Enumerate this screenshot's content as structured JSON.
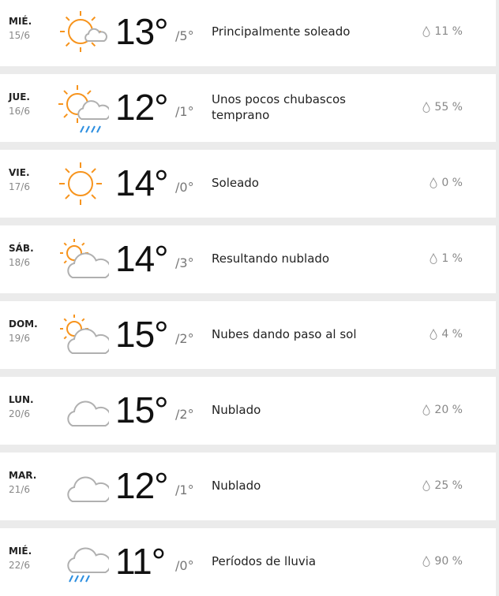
{
  "days": [
    {
      "day": "MIÉ.",
      "date": "15/6",
      "high": "13°",
      "low": "/5°",
      "desc": "Principalmente soleado",
      "precip": "11 %",
      "icon": "sun-small-cloud-icon"
    },
    {
      "day": "JUE.",
      "date": "16/6",
      "high": "12°",
      "low": "/1°",
      "desc": "Unos pocos chubascos temprano",
      "precip": "55 %",
      "icon": "sun-cloud-rain-icon"
    },
    {
      "day": "VIE.",
      "date": "17/6",
      "high": "14°",
      "low": "/0°",
      "desc": "Soleado",
      "precip": "0 %",
      "icon": "sun-icon"
    },
    {
      "day": "SÁB.",
      "date": "18/6",
      "high": "14°",
      "low": "/3°",
      "desc": "Resultando nublado",
      "precip": "1 %",
      "icon": "cloud-sun-icon"
    },
    {
      "day": "DOM.",
      "date": "19/6",
      "high": "15°",
      "low": "/2°",
      "desc": "Nubes dando paso al sol",
      "precip": "4 %",
      "icon": "cloud-sun-icon"
    },
    {
      "day": "LUN.",
      "date": "20/6",
      "high": "15°",
      "low": "/2°",
      "desc": "Nublado",
      "precip": "20 %",
      "icon": "cloud-icon"
    },
    {
      "day": "MAR.",
      "date": "21/6",
      "high": "12°",
      "low": "/1°",
      "desc": "Nublado",
      "precip": "25 %",
      "icon": "cloud-icon"
    },
    {
      "day": "MIÉ.",
      "date": "22/6",
      "high": "11°",
      "low": "/0°",
      "desc": "Períodos de lluvia",
      "precip": "90 %",
      "icon": "rain-cloud-icon"
    }
  ],
  "colors": {
    "sun": "#f7941d",
    "cloud": "#b0b0b0",
    "rain": "#2d8fe0"
  }
}
